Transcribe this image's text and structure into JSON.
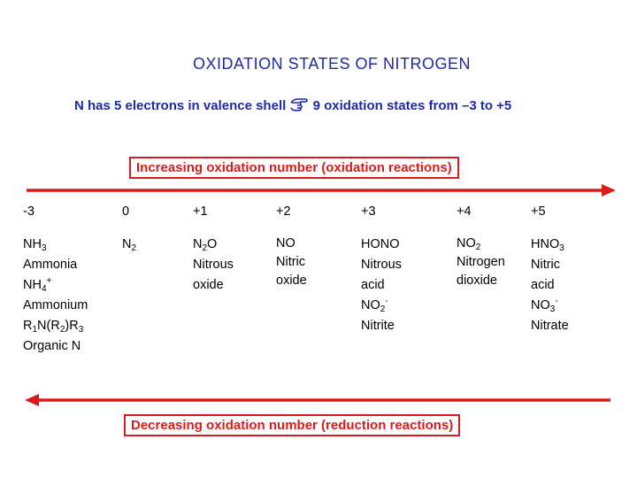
{
  "title": "OXIDATION STATES OF NITROGEN",
  "subtitle": {
    "before": "N has 5 electrons in valence shell",
    "icon": "pointing-hand-icon",
    "after": "9 oxidation states from –3 to +5"
  },
  "increasing_label": "Increasing oxidation number (oxidation reactions)",
  "decreasing_label": "Decreasing oxidation number (reduction reactions)",
  "colors": {
    "title": "#1f2aa6",
    "accent": "#d81c1c"
  },
  "states": [
    "-3",
    "0",
    "+1",
    "+2",
    "+3",
    "+4",
    "+5"
  ],
  "columns": [
    {
      "s1_main": "NH",
      "s1_sub": "3",
      "l1": "Ammonia",
      "s2_main": "NH",
      "s2_sub": "4",
      "s2_sup": "+",
      "l2": "Ammonium",
      "s3_a": "R",
      "s3_a_sub": "1",
      "s3_b": "N(R",
      "s3_b_sub": "2",
      "s3_c": ")R",
      "s3_c_sub": "3",
      "l3": "Organic N"
    },
    {
      "s1_main": "N",
      "s1_sub": "2"
    },
    {
      "s1_main": "N",
      "s1_sub": "2",
      "s1_end": "O",
      "l1": "Nitrous",
      "l2": "oxide"
    },
    {
      "s1_main": "NO",
      "l1": "Nitric",
      "l2": "oxide"
    },
    {
      "s1_main": "HONO",
      "l1": "Nitrous acid",
      "s2_main": "NO",
      "s2_sub": "2",
      "s2_sup": "-",
      "l2": "Nitrite"
    },
    {
      "s1_main": "NO",
      "s1_sub": "2",
      "l1": "Nitrogen",
      "l2": "dioxide"
    },
    {
      "s1_main": "HNO",
      "s1_sub": "3",
      "l1": "Nitric acid",
      "s2_main": "NO",
      "s2_sub": "3",
      "s2_sup": "-",
      "l2": "Nitrate"
    }
  ]
}
